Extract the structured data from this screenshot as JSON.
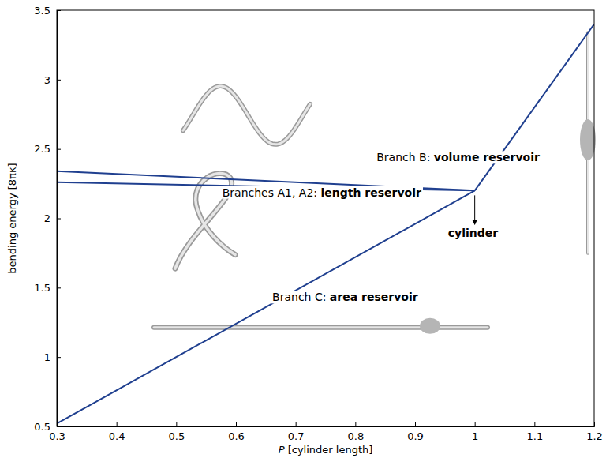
{
  "chart_data": {
    "type": "line",
    "x_label": "P [cylinder length]",
    "y_label": "bending energy [8πκ]",
    "xlim": [
      0.3,
      1.2
    ],
    "xticks": [
      0.3,
      0.4,
      0.5,
      0.6,
      0.7,
      0.8,
      0.9,
      1,
      1.1,
      1.2
    ],
    "ylim": [
      0.5,
      3.5
    ],
    "yticks": [
      0.5,
      1,
      1.5,
      2,
      2.5,
      3,
      3.5
    ],
    "grid": false,
    "color": "#1f3f8f",
    "series": [
      {
        "x": [
          0.3,
          1
        ],
        "values": [
          2.34,
          2.2
        ]
      },
      {
        "x": [
          0.3,
          1
        ],
        "values": [
          2.26,
          2.2
        ]
      },
      {
        "x": [
          1,
          1.2
        ],
        "values": [
          2.2,
          3.4
        ]
      },
      {
        "x": [
          0.3,
          1
        ],
        "values": [
          0.52,
          2.2
        ]
      }
    ],
    "annotations": [
      "Branch B: volume reservoir",
      "Branches A1, A2: length reservoir",
      "cylinder",
      "Branch C: area reservoir"
    ]
  }
}
